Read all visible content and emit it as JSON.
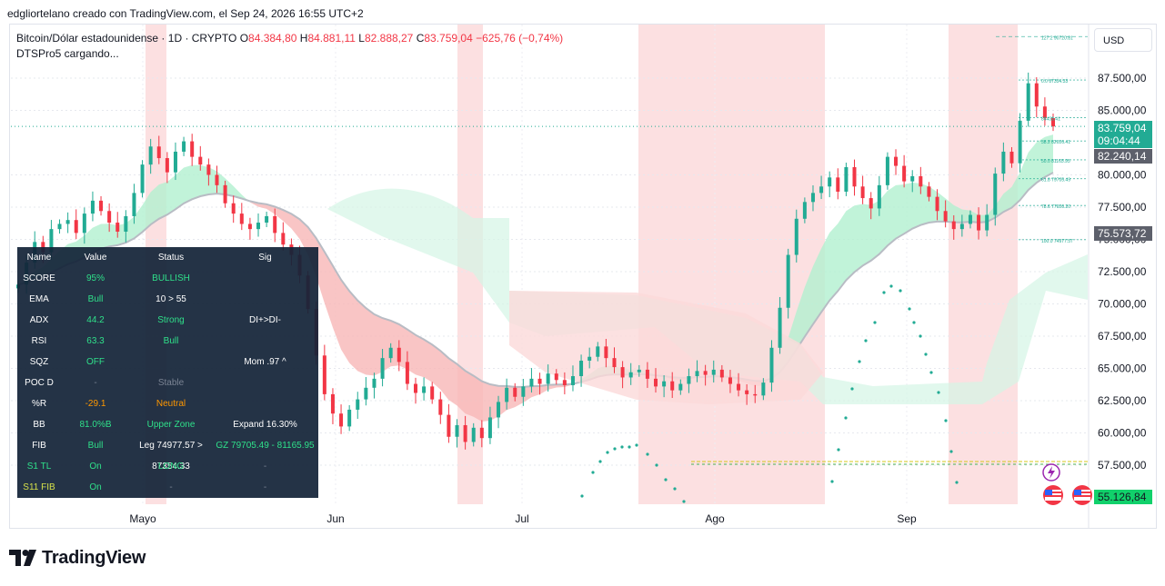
{
  "header": {
    "caption": "edgliortelano creado con TradingView.com, el Sep 24, 2026 16:55 UTC+2"
  },
  "legend": {
    "symbol": "Bitcoin/Dólar estadounidense · 1D · CRYPTO",
    "open_label": "O",
    "open": "84.384,80",
    "high_label": "H",
    "high": "84.881,11",
    "low_label": "L",
    "low": "82.888,27",
    "close_label": "C",
    "close": "83.759,04",
    "change": "−625,76 (−0,74%)",
    "indicator": "DTSPro5 cargando..."
  },
  "currency": "USD",
  "price_tags": {
    "last": "83.759,04",
    "countdown": "09:04:44",
    "level_a": "82.240,14",
    "level_b": "75.573,72",
    "level_c": "55.126,84"
  },
  "fib_labels": [
    {
      "text": "127.2  90720.81",
      "value": 90720.81
    },
    {
      "text": "0.0  87354.33",
      "value": 87354.33
    },
    {
      "text": "84433.41",
      "value": 84433.41
    },
    {
      "text": "38.2  82626.41",
      "value": 82626.41
    },
    {
      "text": "50.0  81165.95",
      "value": 81165.95
    },
    {
      "text": "61.8  79705.49",
      "value": 79705.49
    },
    {
      "text": "78.6  77626.20",
      "value": 77626.2
    },
    {
      "text": "100.0  74977.57",
      "value": 74977.57
    }
  ],
  "panel": {
    "headers": [
      "Name",
      "Value",
      "Status",
      "Sig"
    ],
    "rows": [
      {
        "name": "SCORE",
        "value": "95%",
        "status": "BULLISH",
        "sig": ""
      },
      {
        "name": "EMA",
        "value": "Bull",
        "status": "10 > 55",
        "sig": ""
      },
      {
        "name": "ADX",
        "value": "44.2",
        "status": "Strong",
        "sig": "DI+>DI-"
      },
      {
        "name": "RSI",
        "value": "63.3",
        "status": "Bull",
        "sig": ""
      },
      {
        "name": "SQZ",
        "value": "OFF",
        "status": "",
        "sig": "Mom .97 ^"
      },
      {
        "name": "POC D",
        "value": "-",
        "status": "Stable",
        "sig": ""
      },
      {
        "name": "%R",
        "value": "-29.1",
        "status": "Neutral",
        "sig": ""
      },
      {
        "name": "BB",
        "value": "81.0%B",
        "status": "Upper Zone",
        "sig": "Expand 16.30%"
      },
      {
        "name": "FIB",
        "value": "Bull",
        "status": "Leg 74977.57 > 87354.33",
        "sig": "GZ 79705.49 - 81165.95"
      },
      {
        "name": "S1 TL",
        "value": "On",
        "status": "LONG",
        "sig": "-"
      },
      {
        "name": "S11 FIB",
        "value": "On",
        "status": "-",
        "sig": "-"
      }
    ]
  },
  "brand": {
    "name": "TradingView"
  },
  "colors": {
    "up": "#22ab94",
    "down": "#f23645",
    "cloud_up": "#b2f0d0",
    "cloud_down": "#f7b6b6",
    "session": "#fbd5d7",
    "dots": "#22ab94"
  },
  "chart_data": {
    "type": "candlestick",
    "x_ticks": [
      "Mayo",
      "Jun",
      "Jul",
      "Ago",
      "Sep"
    ],
    "y_ticks": [
      "87.500,00",
      "85.000,00",
      "80.000,00",
      "77.500,00",
      "75.000,00",
      "72.500,00",
      "70.000,00",
      "67.500,00",
      "65.000,00",
      "62.500,00",
      "60.000,00",
      "57.500,00"
    ],
    "y_tick_values": [
      87500,
      85000,
      80000,
      77500,
      75000,
      72500,
      70000,
      67500,
      65000,
      62500,
      60000,
      57500
    ],
    "ylim": [
      55000,
      89000
    ],
    "close_path": [
      71500,
      73200,
      74800,
      74000,
      75800,
      76200,
      76500,
      75500,
      77000,
      78000,
      77200,
      76300,
      75600,
      76800,
      78600,
      80800,
      82200,
      81300,
      80200,
      81800,
      82600,
      81400,
      80800,
      80000,
      79200,
      77800,
      77000,
      76200,
      75800,
      76300,
      76800,
      75500,
      74600,
      73800,
      72200,
      69600,
      66000,
      63000,
      61500,
      60500,
      61800,
      62600,
      63500,
      64200,
      65800,
      66600,
      65500,
      63800,
      63100,
      63600,
      62600,
      61400,
      59700,
      60600,
      59300,
      60400,
      59600,
      61200,
      62400,
      63500,
      62800,
      63600,
      64200,
      63800,
      64600,
      64100,
      63700,
      64400,
      65600,
      65900,
      66700,
      65800,
      65100,
      64300,
      64700,
      64900,
      64200,
      63600,
      64000,
      63300,
      63800,
      64400,
      64800,
      64500,
      64900,
      64300,
      63800,
      63300,
      63000,
      62900,
      63900,
      66600,
      69700,
      73800,
      76600,
      77900,
      78600,
      79100,
      79800,
      78700,
      80600,
      79100,
      78200,
      77400,
      79200,
      81400,
      80700,
      79500,
      79900,
      79100,
      78300,
      77200,
      76400,
      75800,
      76200,
      76900,
      75700,
      76900,
      80100,
      81800,
      80900,
      84200,
      87100,
      85300,
      84400,
      83759
    ]
  }
}
